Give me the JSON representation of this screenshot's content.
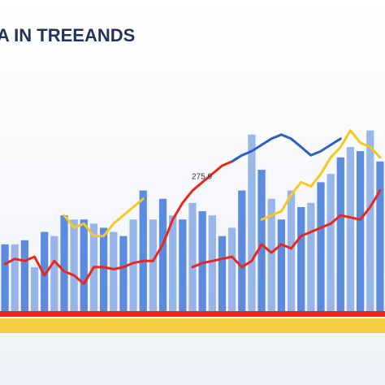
{
  "chart_data": {
    "type": "bar",
    "title": "A IN TREEANDS",
    "annotation": "275.9",
    "categories": [
      null,
      null,
      null,
      null,
      null,
      null,
      null,
      null,
      null,
      null,
      null,
      null,
      null,
      null,
      null,
      null,
      null,
      null,
      null,
      null,
      null,
      null,
      null,
      null,
      null,
      null,
      null,
      null,
      null,
      null,
      null,
      null,
      null,
      null,
      null,
      null,
      null,
      null,
      null
    ],
    "ylim": [
      0,
      100
    ],
    "bars": {
      "color": "#4a7fdc",
      "values": [
        33,
        33,
        35,
        22,
        39,
        37,
        47,
        45,
        45,
        43,
        41,
        39,
        37,
        45,
        59,
        45,
        55,
        47,
        45,
        53,
        49,
        47,
        37,
        41,
        59,
        86,
        69,
        55,
        45,
        59,
        51,
        53,
        63,
        67,
        75,
        80,
        78,
        88,
        73
      ]
    },
    "series": [
      {
        "color": "#e8281e",
        "values": [
          23.5,
          26,
          25,
          27,
          18,
          25,
          20,
          18,
          14,
          22,
          22,
          21,
          22,
          24,
          25,
          25,
          33,
          45,
          53,
          59,
          63,
          67,
          71,
          73,
          null,
          null,
          null,
          null,
          null,
          null,
          null,
          null,
          null,
          null,
          null,
          null,
          null,
          null,
          null
        ]
      },
      {
        "color": "#2f5fc4",
        "values": [
          null,
          null,
          null,
          null,
          null,
          null,
          null,
          null,
          null,
          null,
          null,
          null,
          null,
          null,
          null,
          null,
          null,
          null,
          null,
          null,
          null,
          null,
          null,
          73,
          76,
          78,
          81,
          84,
          86,
          84,
          80,
          76,
          78,
          81,
          84,
          null,
          null,
          null,
          null
        ]
      },
      {
        "color": "#e8281e",
        "values": [
          null,
          null,
          null,
          null,
          null,
          null,
          null,
          null,
          null,
          null,
          null,
          null,
          null,
          null,
          null,
          null,
          null,
          null,
          null,
          22,
          24,
          25,
          26,
          27,
          22,
          25,
          33,
          29,
          33,
          31,
          37,
          39,
          41,
          43,
          47,
          46,
          45,
          51,
          59
        ]
      },
      {
        "color": "#f5c823",
        "values": [
          null,
          null,
          null,
          null,
          null,
          null,
          47,
          41,
          43,
          37,
          37,
          43,
          47,
          51,
          55,
          null,
          null,
          null,
          null,
          null,
          null,
          null,
          null,
          null,
          null,
          null,
          45,
          47,
          49,
          57,
          63,
          61,
          67,
          75,
          80,
          88,
          82,
          80,
          75
        ]
      }
    ]
  }
}
